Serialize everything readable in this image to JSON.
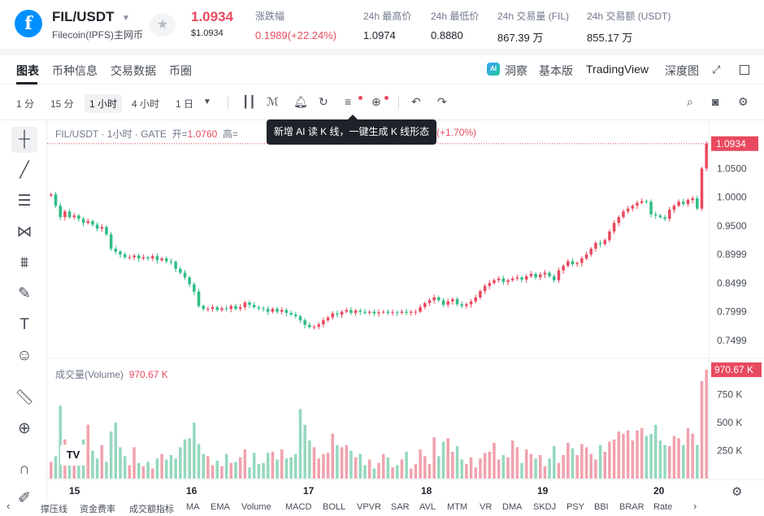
{
  "header": {
    "logo_glyph": "f",
    "pair": "FIL/USDT",
    "pair_sub": "Filecoin(IPFS)主网币",
    "price": "1.0934",
    "price_usd": "$1.0934",
    "stats": [
      {
        "label": "涨跌幅",
        "value": "0.1989(+22.24%)",
        "color": "red"
      },
      {
        "label": "24h 最高价",
        "value": "1.0974"
      },
      {
        "label": "24h 最低价",
        "value": "0.8880"
      },
      {
        "label": "24h 交易量 (FIL)",
        "value": "867.39 万"
      },
      {
        "label": "24h 交易额 (USDT)",
        "value": "855.17 万"
      }
    ]
  },
  "tabs": {
    "items": [
      "图表",
      "币种信息",
      "交易数据",
      "币圈"
    ],
    "right": [
      "洞察",
      "基本版",
      "TradingView",
      "深度图"
    ],
    "ai_badge": "AI"
  },
  "toolbar": {
    "timeframes": [
      "1 分",
      "15 分",
      "1 小时",
      "4 小时",
      "1 日"
    ],
    "active_timeframe": "1 小时"
  },
  "tooltip": "新增 AI 读 K 线，一键生成 K 线形态",
  "legend": {
    "title": "FIL/USDT · 1小时 · GATE",
    "open_label": "开=",
    "open_value": "1.0760",
    "high_label": "高=",
    "change": "2 (+1.70%)"
  },
  "volume_legend": {
    "label": "成交量(Volume)",
    "value": "970.67 K"
  },
  "price_axis": {
    "current": "1.0934",
    "ticks": [
      "1.0500",
      "1.0000",
      "0.9500",
      "0.8999",
      "0.8499",
      "0.7999",
      "0.7499"
    ]
  },
  "volume_axis": {
    "current": "970.67 K",
    "ticks": [
      "750 K",
      "500 K",
      "250 K"
    ]
  },
  "date_axis": [
    "15",
    "16",
    "17",
    "18",
    "19",
    "20"
  ],
  "indicators": [
    "撑压线",
    "资金费率",
    "成交额指标",
    "MA",
    "EMA",
    "Volume",
    "MACD",
    "BOLL",
    "VPVR",
    "SAR",
    "AVL",
    "MTM",
    "VR",
    "DMA",
    "SKDJ",
    "PSY",
    "BBI",
    "BRAR",
    "Rate"
  ],
  "colors": {
    "up": "#e84a5f",
    "down": "#2ebd85",
    "up_volume": "#f0a2ad",
    "down_volume": "#95d8bd"
  },
  "chart_data": {
    "type": "candlestick",
    "price_range": [
      0.72,
      1.12
    ],
    "volume_max": 1000000,
    "closes": [
      1.005,
      0.985,
      0.965,
      0.975,
      0.965,
      0.968,
      0.962,
      0.955,
      0.958,
      0.952,
      0.945,
      0.948,
      0.935,
      0.91,
      0.905,
      0.9,
      0.895,
      0.895,
      0.898,
      0.893,
      0.895,
      0.893,
      0.897,
      0.89,
      0.893,
      0.888,
      0.887,
      0.875,
      0.868,
      0.86,
      0.848,
      0.835,
      0.81,
      0.805,
      0.805,
      0.808,
      0.803,
      0.806,
      0.805,
      0.81,
      0.805,
      0.808,
      0.816,
      0.812,
      0.808,
      0.806,
      0.805,
      0.8,
      0.805,
      0.8,
      0.803,
      0.798,
      0.795,
      0.792,
      0.785,
      0.777,
      0.773,
      0.774,
      0.778,
      0.785,
      0.79,
      0.797,
      0.795,
      0.8,
      0.803,
      0.798,
      0.802,
      0.8,
      0.798,
      0.8,
      0.797,
      0.799,
      0.8,
      0.798,
      0.799,
      0.798,
      0.8,
      0.798,
      0.8,
      0.8,
      0.808,
      0.815,
      0.82,
      0.825,
      0.82,
      0.812,
      0.818,
      0.822,
      0.813,
      0.81,
      0.813,
      0.818,
      0.825,
      0.836,
      0.845,
      0.85,
      0.855,
      0.858,
      0.852,
      0.855,
      0.858,
      0.86,
      0.856,
      0.862,
      0.866,
      0.86,
      0.865,
      0.868,
      0.862,
      0.855,
      0.872,
      0.88,
      0.888,
      0.883,
      0.885,
      0.893,
      0.9,
      0.91,
      0.92,
      0.918,
      0.925,
      0.94,
      0.955,
      0.965,
      0.975,
      0.98,
      0.985,
      0.99,
      0.993,
      0.992,
      0.97,
      0.968,
      0.965,
      0.962,
      0.978,
      0.985,
      0.992,
      0.988,
      0.995,
      0.998,
      0.98,
      1.05,
      1.0934
    ],
    "volumes": [
      150000,
      200000,
      650000,
      350000,
      120000,
      280000,
      200000,
      350000,
      480000,
      250000,
      180000,
      300000,
      150000,
      420000,
      500000,
      280000,
      200000,
      120000,
      280000,
      140000,
      110000,
      150000,
      90000,
      180000,
      220000,
      170000,
      210000,
      180000,
      280000,
      350000,
      360000,
      500000,
      310000,
      220000,
      200000,
      120000,
      160000,
      110000,
      220000,
      140000,
      150000,
      190000,
      260000,
      100000,
      230000,
      130000,
      140000,
      230000,
      240000,
      170000,
      260000,
      180000,
      190000,
      220000,
      620000,
      480000,
      340000,
      280000,
      180000,
      220000,
      230000,
      400000,
      300000,
      280000,
      300000,
      250000,
      190000,
      220000,
      120000,
      170000,
      90000,
      140000,
      220000,
      190000,
      100000,
      120000,
      170000,
      240000,
      90000,
      130000,
      260000,
      200000,
      130000,
      370000,
      200000,
      330000,
      360000,
      240000,
      290000,
      170000,
      130000,
      190000,
      100000,
      180000,
      230000,
      240000,
      320000,
      170000,
      210000,
      190000,
      340000,
      280000,
      140000,
      260000,
      220000,
      180000,
      210000,
      110000,
      180000,
      290000,
      140000,
      210000,
      320000,
      270000,
      210000,
      310000,
      280000,
      220000,
      170000,
      300000,
      240000,
      330000,
      350000,
      420000,
      400000,
      430000,
      340000,
      430000,
      450000,
      380000,
      400000,
      480000,
      340000,
      300000,
      290000,
      380000,
      360000,
      300000,
      450000,
      400000,
      300000,
      870000,
      970670
    ]
  }
}
